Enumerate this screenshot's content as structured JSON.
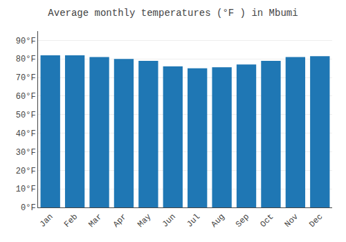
{
  "chart_data": {
    "type": "bar",
    "title": "Average monthly temperatures (°F ) in Mbumi",
    "categories": [
      "Jan",
      "Feb",
      "Mar",
      "Apr",
      "May",
      "Jun",
      "Jul",
      "Aug",
      "Sep",
      "Oct",
      "Nov",
      "Dec"
    ],
    "values": [
      82,
      82,
      81,
      80,
      79,
      76,
      75,
      75.5,
      77,
      79,
      81,
      81.5
    ],
    "ylim": [
      0,
      95
    ],
    "yticks": [
      {
        "value": 0,
        "label": "0°F"
      },
      {
        "value": 10,
        "label": "10°F"
      },
      {
        "value": 20,
        "label": "20°F"
      },
      {
        "value": 30,
        "label": "30°F"
      },
      {
        "value": 40,
        "label": "40°F"
      },
      {
        "value": 50,
        "label": "50°F"
      },
      {
        "value": 60,
        "label": "60°F"
      },
      {
        "value": 70,
        "label": "70°F"
      },
      {
        "value": 80,
        "label": "80°F"
      },
      {
        "value": 90,
        "label": "90°F"
      }
    ],
    "grid": true
  }
}
